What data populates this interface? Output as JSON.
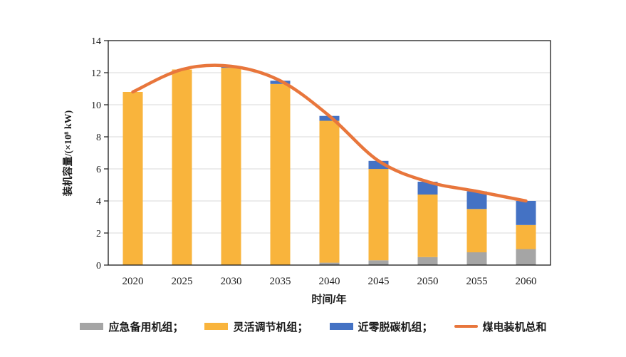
{
  "chart_data": {
    "type": "bar",
    "subtype": "stacked-bars-with-total-line",
    "title": "",
    "categories": [
      "2020",
      "2025",
      "2030",
      "2035",
      "2040",
      "2045",
      "2050",
      "2055",
      "2060"
    ],
    "series": [
      {
        "name": "应急备用机组",
        "kind": "bar",
        "color": "#A5A5A5",
        "values": [
          0,
          0,
          0,
          0,
          0.15,
          0.3,
          0.5,
          0.8,
          1.0
        ]
      },
      {
        "name": "灵活调节机组",
        "kind": "bar",
        "color": "#F9B43C",
        "values": [
          10.8,
          12.2,
          12.3,
          11.3,
          8.85,
          5.7,
          3.9,
          2.7,
          1.5
        ]
      },
      {
        "name": "近零脱碳机组",
        "kind": "bar",
        "color": "#4472C4",
        "values": [
          0,
          0,
          0.1,
          0.2,
          0.3,
          0.5,
          0.8,
          1.1,
          1.5
        ]
      },
      {
        "name": "煤电装机总和",
        "kind": "line",
        "color": "#E8763C",
        "values": [
          10.8,
          12.2,
          12.4,
          11.5,
          9.3,
          6.5,
          5.2,
          4.6,
          4.0
        ]
      }
    ],
    "xlabel": "时间/年",
    "ylabel": "装机容量/(×10⁸ kW)",
    "ylim": [
      0,
      14
    ],
    "yticks": [
      0,
      2,
      4,
      6,
      8,
      10,
      12,
      14
    ],
    "grid": true,
    "gridline_color": "#D9D9D9",
    "axis_color": "#1a1a1a",
    "legend_position": "bottom",
    "legend": [
      {
        "label": "应急备用机组；",
        "swatch": "bar",
        "color": "#A5A5A5"
      },
      {
        "label": "灵活调节机组；",
        "swatch": "bar",
        "color": "#F9B43C"
      },
      {
        "label": "近零脱碳机组；",
        "swatch": "bar",
        "color": "#4472C4"
      },
      {
        "label": "煤电装机总和",
        "swatch": "line",
        "color": "#E8763C"
      }
    ]
  }
}
